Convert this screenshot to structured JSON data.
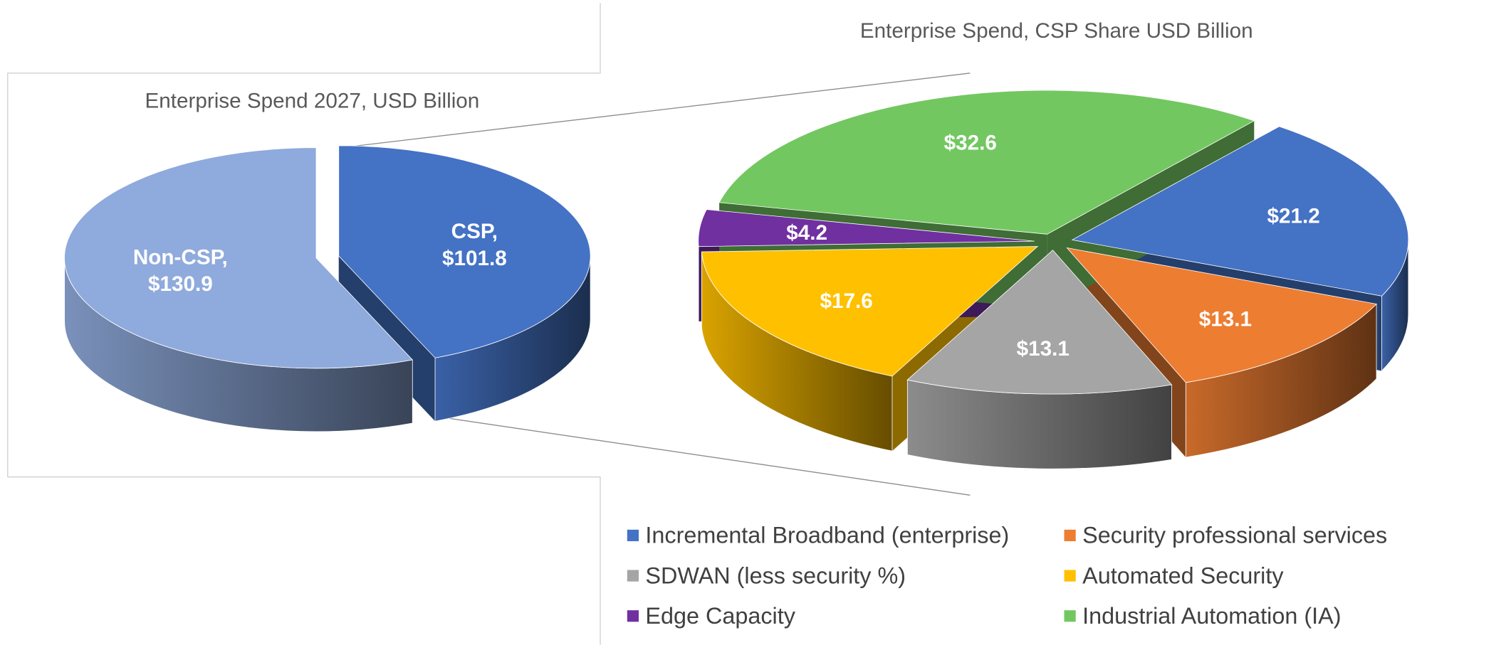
{
  "chart_data": [
    {
      "type": "pie",
      "title": "Enterprise Spend 2027, USD Billion",
      "categories": [
        "Non-CSP,",
        "CSP,"
      ],
      "values": [
        130.9,
        101.8
      ],
      "value_labels": [
        "$130.9",
        "$101.8"
      ],
      "colors": [
        "#8faadc",
        "#4472c4"
      ]
    },
    {
      "type": "pie",
      "title": "Enterprise Spend, CSP Share USD Billion",
      "categories": [
        "Incremental Broadband (enterprise)",
        "Security professional services",
        "SDWAN (less security %)",
        "Automated Security",
        "Edge Capacity",
        "Industrial Automation (IA)"
      ],
      "values": [
        21.2,
        13.1,
        13.1,
        17.6,
        4.2,
        32.6
      ],
      "value_labels": [
        "$21.2",
        "$13.1",
        "$13.1",
        "$17.6",
        "$4.2",
        "$32.6"
      ],
      "colors": [
        "#4472c4",
        "#ed7d31",
        "#a5a5a5",
        "#ffc000",
        "#7030a0",
        "#72c761"
      ],
      "legend": "bottom"
    }
  ]
}
